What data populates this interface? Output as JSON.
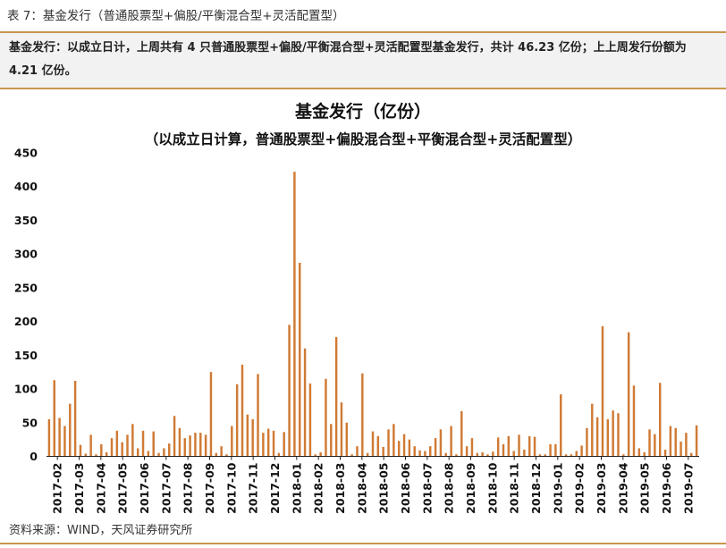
{
  "caption": "表 7：基金发行（普通股票型+偏股/平衡混合型+灵活配置型）",
  "summary": "基金发行：以成立日计，上周共有 4 只普通股票型+偏股/平衡混合型+灵活配置型基金发行，共计 46.23 亿份；上上周发行份额为 4.21 亿份。",
  "source": "资料来源：WIND，天风证券研究所",
  "colors": {
    "bar": "#d07a34",
    "rule": "#c8964e",
    "axis": "#222222"
  },
  "chart_data": {
    "type": "bar",
    "title": "基金发行（亿份）",
    "subtitle": "（以成立日计算，普通股票型+偏股混合型+平衡混合型+灵活配置型）",
    "xlabel": "",
    "ylabel": "",
    "ylim": [
      0,
      450
    ],
    "yticks": [
      0,
      50,
      100,
      150,
      200,
      250,
      300,
      350,
      400,
      450
    ],
    "xtick_labels": [
      "2017-02",
      "2017-03",
      "2017-04",
      "2017-05",
      "2017-06",
      "2017-07",
      "2017-08",
      "2017-09",
      "2017-10",
      "2017-11",
      "2017-12",
      "2018-01",
      "2018-02",
      "2018-03",
      "2018-04",
      "2018-05",
      "2018-06",
      "2018-07",
      "2018-08",
      "2018-09",
      "2018-10",
      "2018-11",
      "2018-12",
      "2019-01",
      "2019-02",
      "2019-03",
      "2019-04",
      "2019-05",
      "2019-06",
      "2019-07"
    ],
    "grid": false,
    "legend": "none",
    "values": [
      55,
      113,
      57,
      45,
      78,
      112,
      17,
      4,
      32,
      3,
      18,
      6,
      27,
      38,
      21,
      32,
      48,
      12,
      38,
      8,
      37,
      5,
      12,
      19,
      60,
      42,
      27,
      31,
      35,
      35,
      32,
      125,
      5,
      15,
      3,
      45,
      107,
      136,
      62,
      55,
      122,
      35,
      41,
      38,
      5,
      36,
      195,
      422,
      287,
      160,
      108,
      3,
      6,
      115,
      48,
      177,
      80,
      50,
      3,
      15,
      123,
      5,
      37,
      30,
      14,
      40,
      48,
      23,
      33,
      25,
      15,
      9,
      8,
      15,
      27,
      40,
      5,
      45,
      3,
      67,
      15,
      27,
      5,
      6,
      3,
      7,
      28,
      18,
      30,
      8,
      32,
      10,
      30,
      29,
      3,
      3,
      18,
      18,
      92,
      3,
      3,
      8,
      16,
      42,
      78,
      58,
      193,
      55,
      68,
      64,
      3,
      184,
      105,
      12,
      6,
      40,
      33,
      109,
      10,
      45,
      42,
      22,
      35,
      5,
      46
    ]
  }
}
